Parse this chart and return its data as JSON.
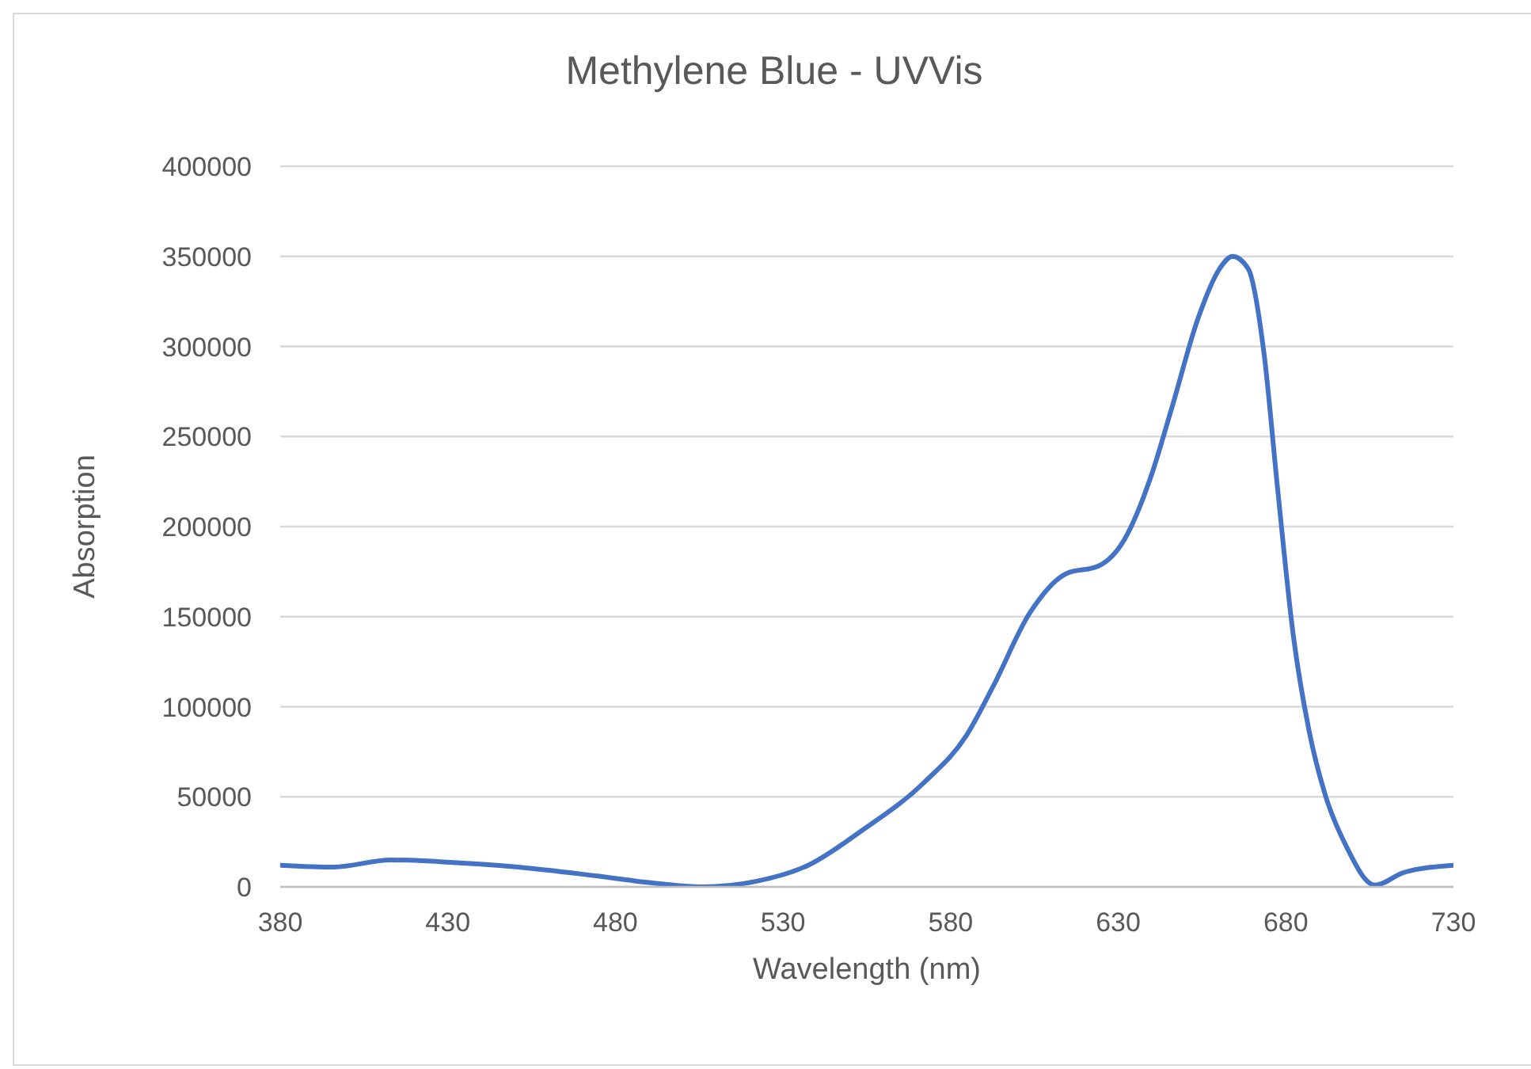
{
  "chart_data": {
    "type": "line",
    "title": "Methylene Blue - UVVis",
    "xlabel": "Wavelength (nm)",
    "ylabel": "Absorption",
    "xlim": [
      380,
      730
    ],
    "xticks": [
      380,
      430,
      480,
      530,
      580,
      630,
      680,
      730
    ],
    "ylim": [
      0,
      400000
    ],
    "yticks": [
      0,
      50000,
      100000,
      150000,
      200000,
      250000,
      300000,
      350000,
      400000
    ],
    "grid": "y",
    "marker": "none",
    "line_style": "solid",
    "series": [
      {
        "color": "#4472c4",
        "x": [
          380,
          396,
          413,
          427.5,
          451,
          474.7,
          492,
          506,
          521.8,
          537.5,
          553.3,
          572.1,
          584.7,
          592.6,
          603.6,
          614.6,
          624,
          631.9,
          639.8,
          646,
          653.9,
          660.2,
          664.1,
          668.8,
          673.5,
          677.5,
          682.2,
          686.9,
          691.6,
          697.9,
          706.6,
          715.2,
          730
        ],
        "values": [
          12000,
          11000,
          15000,
          14000,
          11000,
          6000,
          2000,
          0,
          3000,
          12000,
          31000,
          58000,
          84000,
          111000,
          152000,
          174000,
          178000,
          193000,
          228000,
          266000,
          316000,
          343000,
          350000,
          343000,
          296000,
          222000,
          140000,
          87000,
          52000,
          23000,
          1000,
          8000,
          12000
        ]
      }
    ]
  }
}
